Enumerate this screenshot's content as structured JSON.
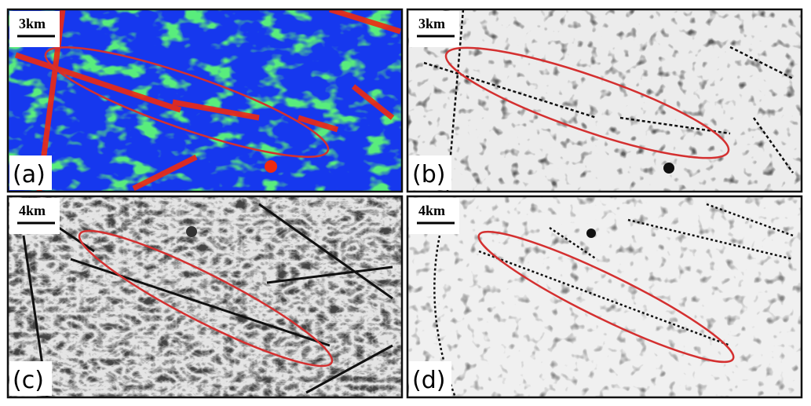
{
  "panels": [
    {
      "scale": "3km",
      "label": "(a)"
    },
    {
      "scale": "3km",
      "label": "(b)"
    },
    {
      "scale": "4km",
      "label": "(c)"
    },
    {
      "scale": "4km",
      "label": "(d)"
    }
  ]
}
